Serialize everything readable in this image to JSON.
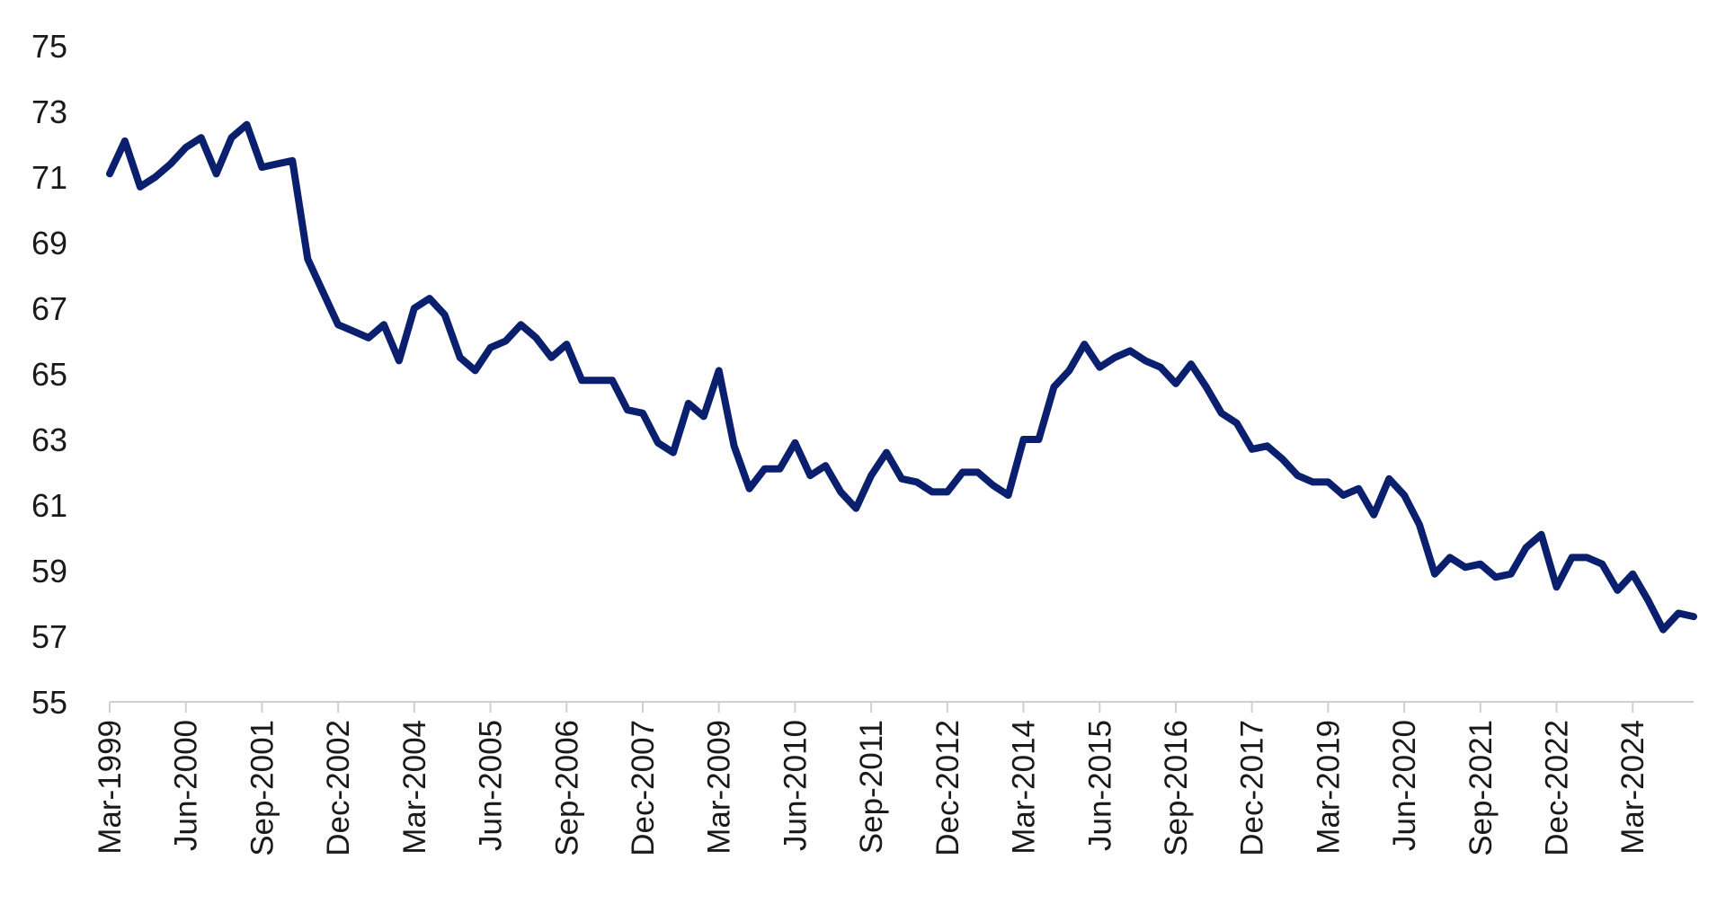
{
  "chart_data": {
    "type": "line",
    "title": "",
    "xlabel": "",
    "ylabel": "",
    "ylim": [
      55,
      75
    ],
    "yticks": [
      55,
      57,
      59,
      61,
      63,
      65,
      67,
      69,
      71,
      73,
      75
    ],
    "grid": false,
    "legend": "none",
    "line_color": "#0a1f6e",
    "xtick_labels": [
      "Mar-1999",
      "Jun-2000",
      "Sep-2001",
      "Dec-2002",
      "Mar-2004",
      "Jun-2005",
      "Sep-2006",
      "Dec-2007",
      "Mar-2009",
      "Jun-2010",
      "Sep-2011",
      "Dec-2012",
      "Mar-2014",
      "Jun-2015",
      "Sep-2016",
      "Dec-2017",
      "Mar-2019",
      "Jun-2020",
      "Sep-2021",
      "Dec-2022",
      "Mar-2024"
    ],
    "series": [
      {
        "values": [
          71.1,
          72.1,
          70.7,
          71.0,
          71.4,
          71.9,
          72.2,
          71.1,
          72.2,
          72.6,
          71.3,
          71.4,
          71.5,
          68.5,
          67.5,
          66.5,
          66.3,
          66.1,
          66.5,
          65.4,
          67.0,
          67.3,
          66.8,
          65.5,
          65.1,
          65.8,
          66.0,
          66.5,
          66.1,
          65.5,
          65.9,
          64.8,
          64.8,
          64.8,
          63.9,
          63.8,
          62.9,
          62.6,
          64.1,
          63.7,
          65.1,
          62.8,
          61.5,
          62.1,
          62.1,
          62.9,
          61.9,
          62.2,
          61.4,
          60.9,
          61.9,
          62.6,
          61.8,
          61.7,
          61.4,
          61.4,
          62.0,
          62.0,
          61.6,
          61.3,
          63.0,
          63.0,
          64.6,
          65.1,
          65.9,
          65.2,
          65.5,
          65.7,
          65.4,
          65.2,
          64.7,
          65.3,
          64.6,
          63.8,
          63.5,
          62.7,
          62.8,
          62.4,
          61.9,
          61.7,
          61.7,
          61.3,
          61.5,
          60.7,
          61.8,
          61.3,
          60.4,
          58.9,
          59.4,
          59.1,
          59.2,
          58.8,
          58.9,
          59.7,
          60.1,
          58.5,
          59.4,
          59.4,
          59.2,
          58.4,
          58.9,
          58.1,
          57.2,
          57.7,
          57.6
        ]
      }
    ]
  }
}
